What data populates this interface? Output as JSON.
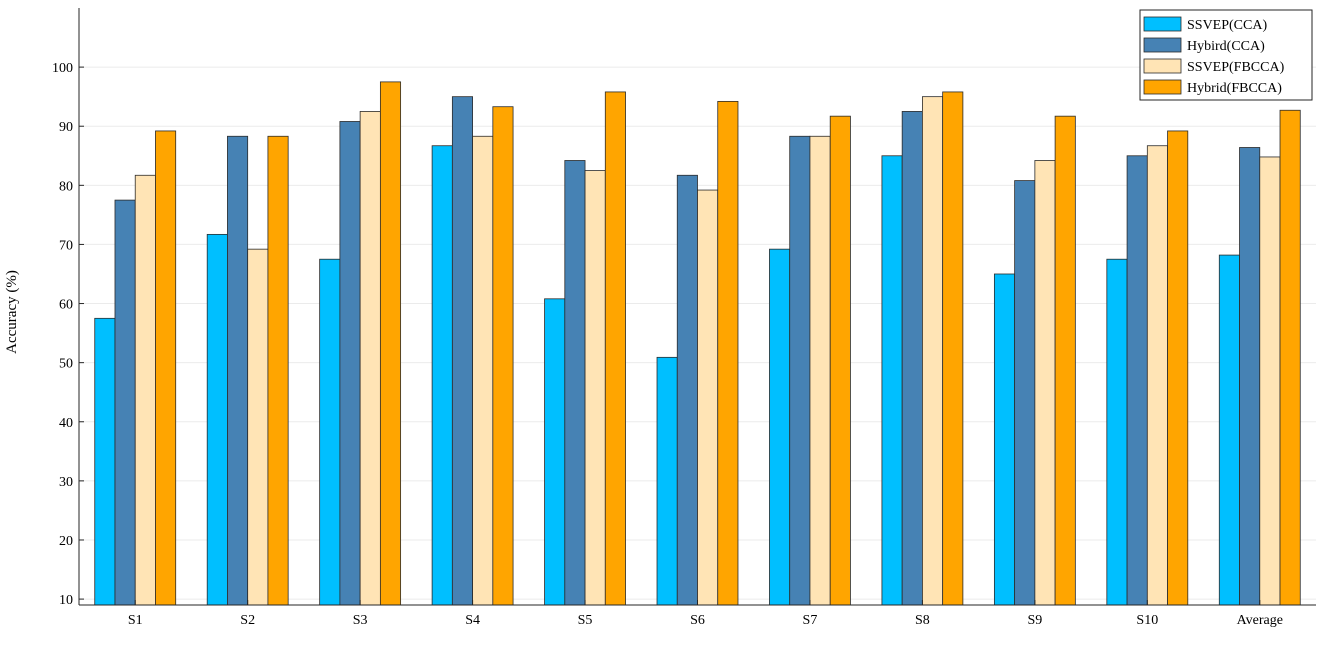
{
  "chart_data": {
    "type": "bar",
    "title": "",
    "xlabel": "",
    "ylabel": "Accuracy (%)",
    "categories": [
      "S1",
      "S2",
      "S3",
      "S4",
      "S5",
      "S6",
      "S7",
      "S8",
      "S9",
      "S10",
      "Average"
    ],
    "ylim": [
      9,
      110
    ],
    "yticks": [
      10,
      20,
      30,
      40,
      50,
      60,
      70,
      80,
      90,
      100
    ],
    "grid": true,
    "legend_position": "top-right",
    "series": [
      {
        "name": "SSVEP(CCA)",
        "color": "#00BFFF",
        "values": [
          57.5,
          71.7,
          67.5,
          86.7,
          60.8,
          50.9,
          69.2,
          85.0,
          65.0,
          67.5,
          68.2
        ]
      },
      {
        "name": "Hybird(CCA)",
        "color": "#4682B4",
        "values": [
          77.5,
          88.3,
          90.8,
          95.0,
          84.2,
          81.7,
          88.3,
          92.5,
          80.8,
          85.0,
          86.4
        ]
      },
      {
        "name": "SSVEP(FBCCA)",
        "color": "#FFE4B5",
        "values": [
          81.7,
          69.2,
          92.5,
          88.3,
          82.5,
          79.2,
          88.3,
          95.0,
          84.2,
          86.7,
          84.8
        ]
      },
      {
        "name": "Hybrid(FBCCA)",
        "color": "#FFA500",
        "values": [
          89.2,
          88.3,
          97.5,
          93.3,
          95.8,
          94.2,
          91.7,
          95.8,
          91.7,
          89.2,
          92.7
        ]
      }
    ]
  }
}
